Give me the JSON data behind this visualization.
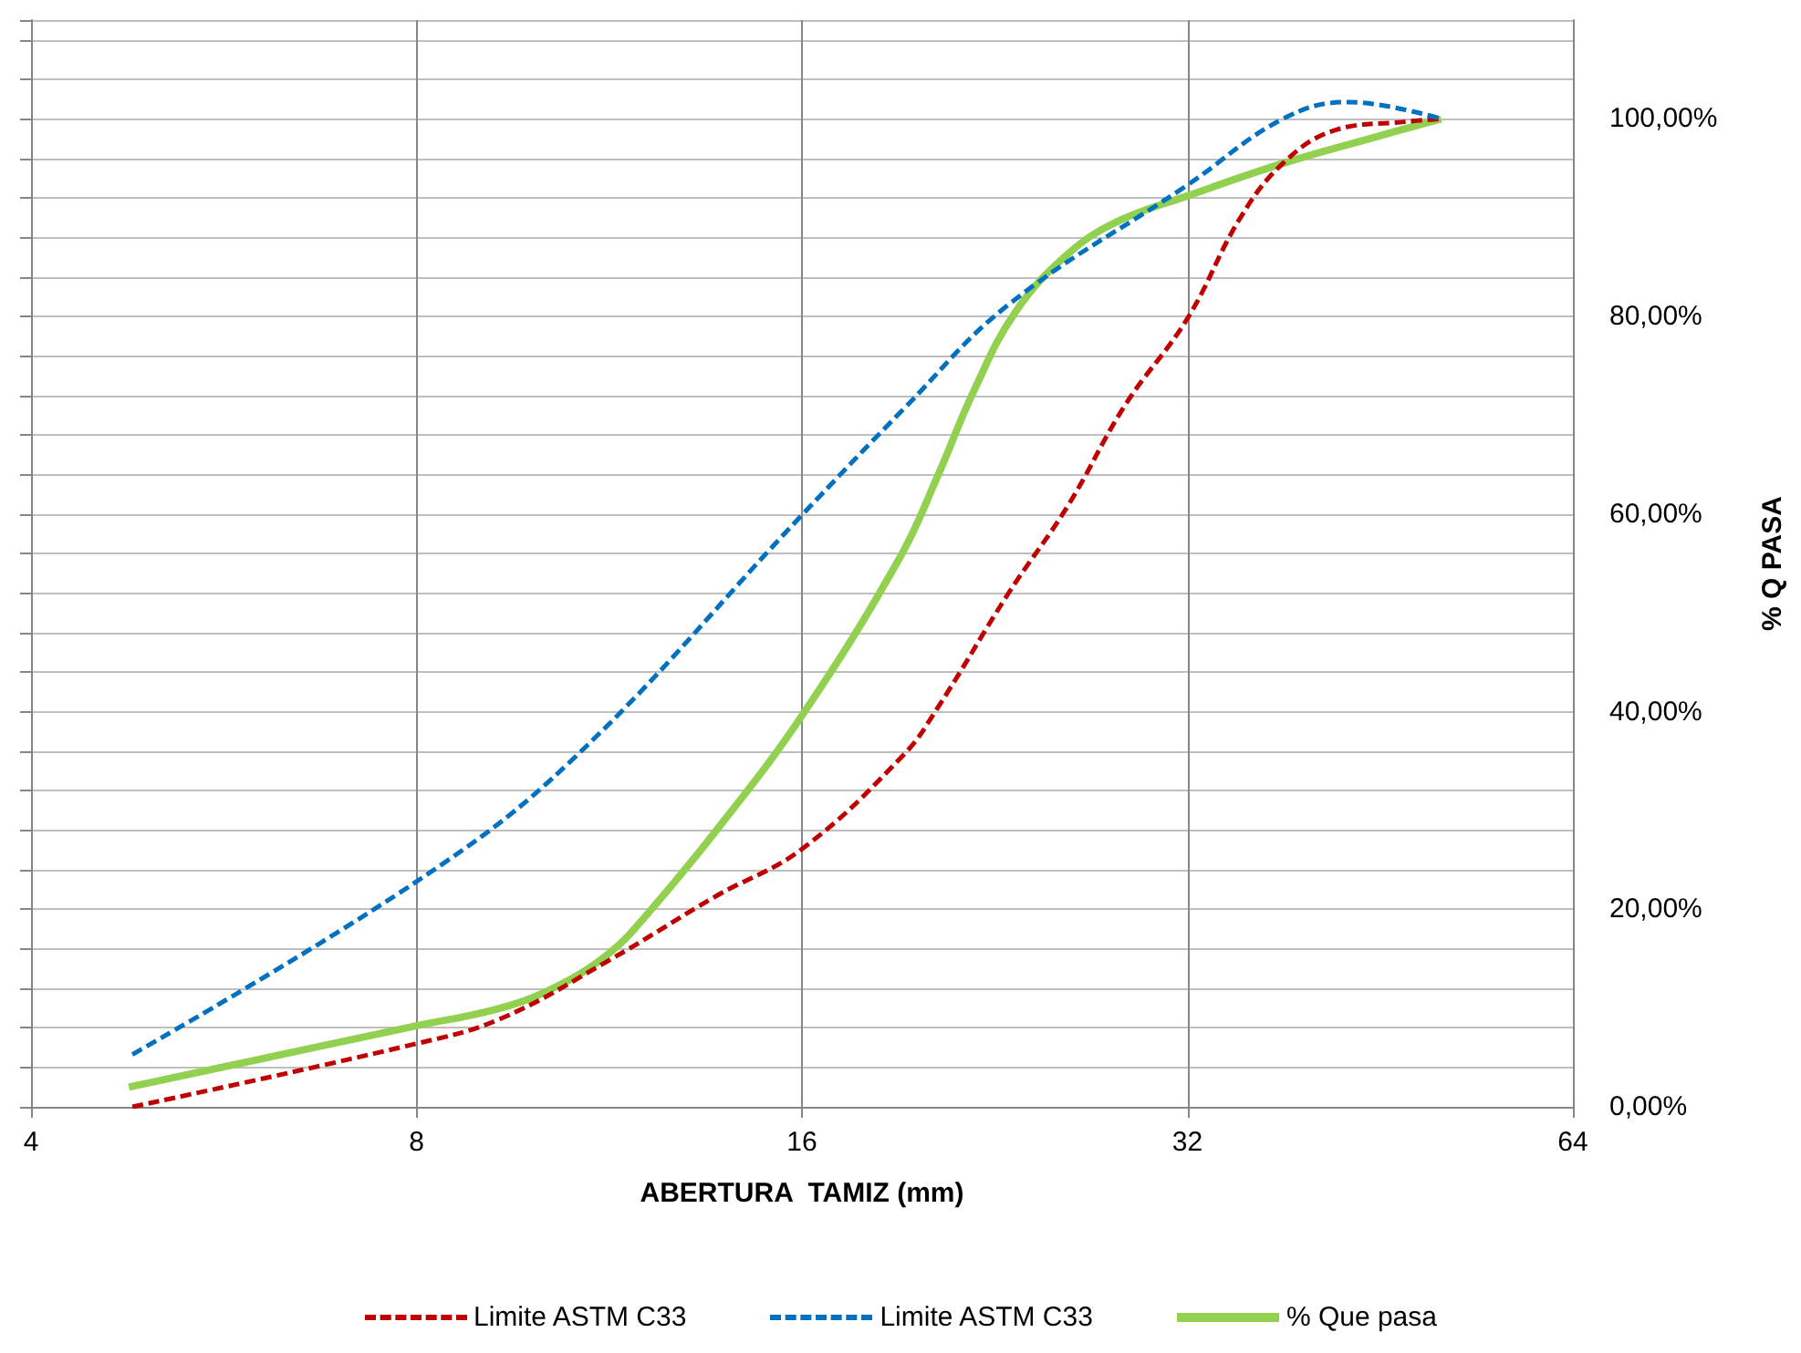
{
  "chart_data": {
    "type": "line",
    "xlabel": "ABERTURA  TAMIZ (mm)",
    "ylabel": "% Q PASA",
    "log": "x",
    "xlim": [
      4,
      64
    ],
    "xticks": [
      4,
      8,
      16,
      32,
      64
    ],
    "ylim": [
      0,
      110
    ],
    "yticks": [
      {
        "value": 0,
        "label": "0,00%"
      },
      {
        "value": 20,
        "label": "20,00%"
      },
      {
        "value": 40,
        "label": "40,00%"
      },
      {
        "value": 60,
        "label": "60,00%"
      },
      {
        "value": 80,
        "label": "80,00%"
      },
      {
        "value": 100,
        "label": "100,00%"
      }
    ],
    "grid": true,
    "legend": "bottom",
    "marker": "none",
    "series": [
      {
        "name": "Limite ASTM C33",
        "color": "#c00000",
        "line_style": "dashed",
        "x": [
          4.8,
          8,
          9.3,
          11.3,
          13.7,
          16,
          19.2,
          20.4,
          23.2,
          25.8,
          28.6,
          32,
          35.2,
          38,
          41.6,
          47.3,
          50.5
        ],
        "values": [
          0,
          6.4,
          8.9,
          14.8,
          21.3,
          26.1,
          35.6,
          40.3,
          52,
          60.8,
          71,
          79.8,
          90,
          95.5,
          98.8,
          99.7,
          100
        ]
      },
      {
        "name": "Limite ASTM C33",
        "color": "#0070c0",
        "line_style": "dashed",
        "x": [
          4.8,
          8,
          10.6,
          16,
          19.2,
          23.2,
          32,
          38,
          42.7,
          50.5
        ],
        "values": [
          5.3,
          22.8,
          35.2,
          59.9,
          70.6,
          81.2,
          93.3,
          100,
          101.7,
          100
        ]
      },
      {
        "name": "% Que pasa",
        "color": "#92d050",
        "line_style": "solid",
        "x": [
          4.77,
          8,
          9.31,
          10.3,
          11.3,
          12.04,
          13.7,
          16,
          19.1,
          20.4,
          21.8,
          23.5,
          25.8,
          28.2,
          32,
          38,
          44.4,
          50.5
        ],
        "values": [
          2,
          8.2,
          10,
          12.2,
          15.5,
          19.1,
          27.9,
          39.6,
          55.7,
          63.7,
          72.5,
          80.5,
          86.3,
          89.6,
          92.2,
          95.5,
          98,
          100
        ]
      }
    ]
  }
}
